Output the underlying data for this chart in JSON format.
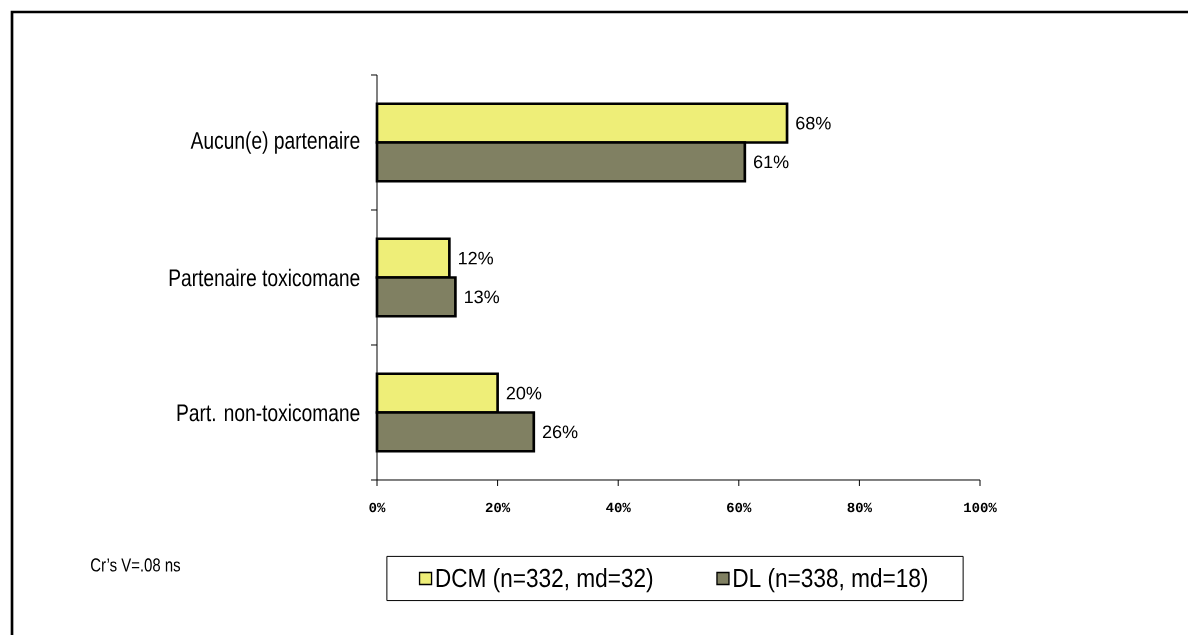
{
  "chart_data": {
    "type": "bar",
    "orientation": "horizontal",
    "categories": [
      "Aucun(e) partenaire",
      "Partenaire toxicomane",
      "Part. non-toxicomane"
    ],
    "series": [
      {
        "name": "DCM (n=332, md=32)",
        "color": "#eeee78",
        "values": [
          68,
          12,
          20
        ],
        "value_labels": [
          "68%",
          "12%",
          "20%"
        ]
      },
      {
        "name": "DL (n=338, md=18)",
        "color": "#808062",
        "values": [
          61,
          13,
          26
        ],
        "value_labels": [
          "61%",
          "13%",
          "26%"
        ]
      }
    ],
    "xlim": [
      0,
      100
    ],
    "xticks": [
      {
        "value": 0,
        "label": "0%"
      },
      {
        "value": 20,
        "label": "20%"
      },
      {
        "value": 40,
        "label": "40%"
      },
      {
        "value": 60,
        "label": "60%"
      },
      {
        "value": 80,
        "label": "80%"
      },
      {
        "value": 100,
        "label": "100%"
      }
    ],
    "legend": "bottom",
    "annotations": [
      "Cr’s V=.08 ns"
    ]
  }
}
